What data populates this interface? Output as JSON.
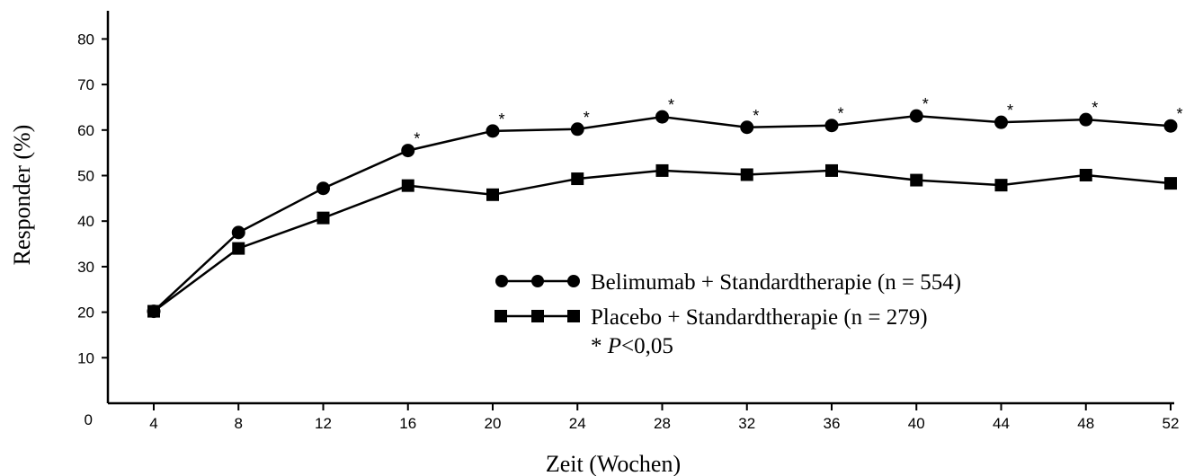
{
  "chart_data": {
    "type": "line",
    "xlabel": "Zeit (Wochen)",
    "ylabel": "Responder (%)",
    "x": [
      4,
      8,
      12,
      16,
      20,
      24,
      28,
      32,
      36,
      40,
      44,
      48,
      52
    ],
    "x_ticks": [
      "4",
      "8",
      "12",
      "16",
      "20",
      "24",
      "28",
      "32",
      "36",
      "40",
      "44",
      "48",
      "52"
    ],
    "y_ticks": [
      "0",
      "10",
      "20",
      "30",
      "40",
      "50",
      "60",
      "70",
      "80"
    ],
    "ylim": [
      0,
      85
    ],
    "grid": false,
    "series": [
      {
        "name": "Belimumab + Standardtherapie (n = 554)",
        "marker": "circle",
        "color": "#000000",
        "values": [
          20.2,
          37.5,
          47.2,
          55.5,
          59.8,
          60.2,
          62.9,
          60.6,
          61.0,
          63.1,
          61.7,
          62.3,
          60.9
        ]
      },
      {
        "name": "Placebo + Standardtherapie (n = 279)",
        "marker": "square",
        "color": "#000000",
        "values": [
          20.2,
          34.0,
          40.7,
          47.8,
          45.8,
          49.3,
          51.1,
          50.2,
          51.1,
          49.0,
          47.9,
          50.1,
          48.3
        ]
      }
    ],
    "significance": {
      "symbol": "*",
      "weeks": [
        16,
        20,
        24,
        28,
        32,
        36,
        40,
        44,
        48,
        52
      ]
    },
    "annotation": {
      "prefix": "* ",
      "p_symbol": "P",
      "text": "<0,05"
    },
    "legend_position": "center-right"
  }
}
